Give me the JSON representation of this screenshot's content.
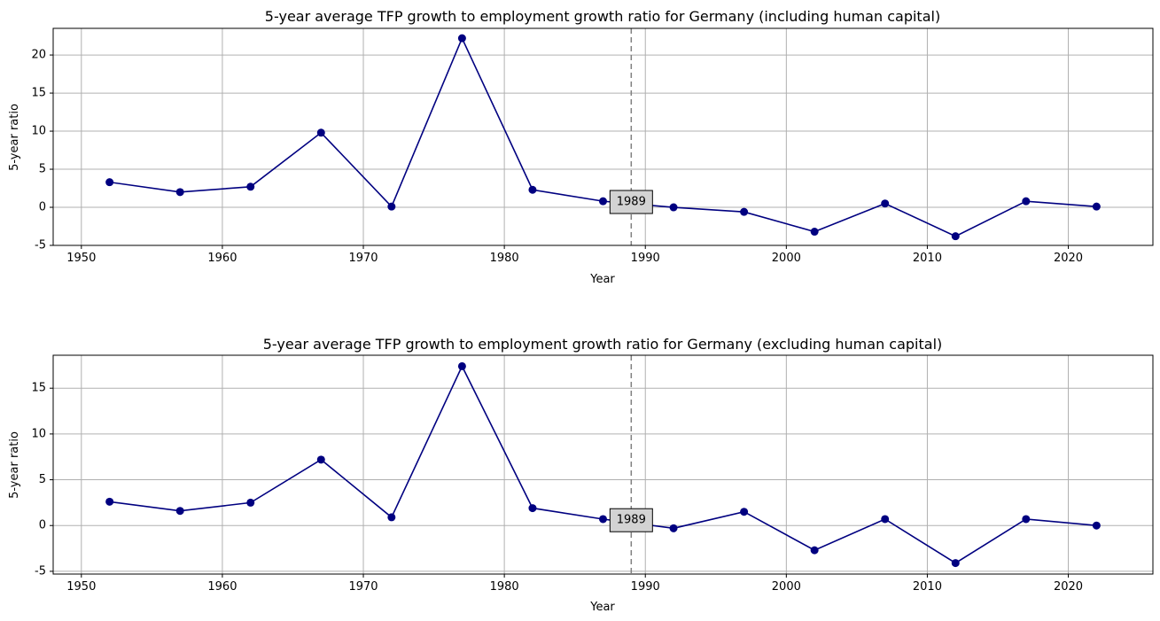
{
  "chart_data": [
    {
      "type": "line",
      "title": "5-year average TFP growth to employment growth ratio for Germany (including human capital)",
      "xlabel": "Year",
      "ylabel": "5-year ratio",
      "x": [
        1952,
        1957,
        1962,
        1967,
        1972,
        1977,
        1982,
        1987,
        1992,
        1997,
        2002,
        2007,
        2012,
        2017,
        2022
      ],
      "series": [
        {
          "values": [
            3.3,
            2.0,
            2.7,
            9.8,
            0.1,
            22.2,
            2.3,
            0.8,
            0.0,
            -0.6,
            -3.2,
            0.5,
            -3.8,
            0.8,
            0.1
          ]
        }
      ],
      "xlim": [
        1948,
        2026
      ],
      "ylim": [
        -5,
        23.5
      ],
      "xticks": [
        1950,
        1960,
        1970,
        1980,
        1990,
        2000,
        2010,
        2020
      ],
      "yticks": [
        -5,
        0,
        5,
        10,
        15,
        20
      ],
      "grid": true,
      "vline": {
        "x": 1989,
        "label": "1989"
      },
      "colors": {
        "line": "#000080",
        "marker": "#000080",
        "grid": "#b0b0b0",
        "vline": "#808080",
        "annot_bg": "#d3d3d3"
      }
    },
    {
      "type": "line",
      "title": "5-year average TFP growth to employment growth ratio for Germany (excluding human capital)",
      "xlabel": "Year",
      "ylabel": "5-year ratio",
      "x": [
        1952,
        1957,
        1962,
        1967,
        1972,
        1977,
        1982,
        1987,
        1992,
        1997,
        2002,
        2007,
        2012,
        2017,
        2022
      ],
      "series": [
        {
          "values": [
            2.6,
            1.6,
            2.5,
            7.2,
            0.9,
            17.4,
            1.9,
            0.7,
            -0.3,
            1.5,
            -2.7,
            0.7,
            -4.1,
            0.7,
            0.0
          ]
        }
      ],
      "xlim": [
        1948,
        2026
      ],
      "ylim": [
        -5.3,
        18.6
      ],
      "xticks": [
        1950,
        1960,
        1970,
        1980,
        1990,
        2000,
        2010,
        2020
      ],
      "yticks": [
        -5,
        0,
        5,
        10,
        15
      ],
      "grid": true,
      "vline": {
        "x": 1989,
        "label": "1989"
      },
      "colors": {
        "line": "#000080",
        "marker": "#000080",
        "grid": "#b0b0b0",
        "vline": "#808080",
        "annot_bg": "#d3d3d3"
      }
    }
  ]
}
